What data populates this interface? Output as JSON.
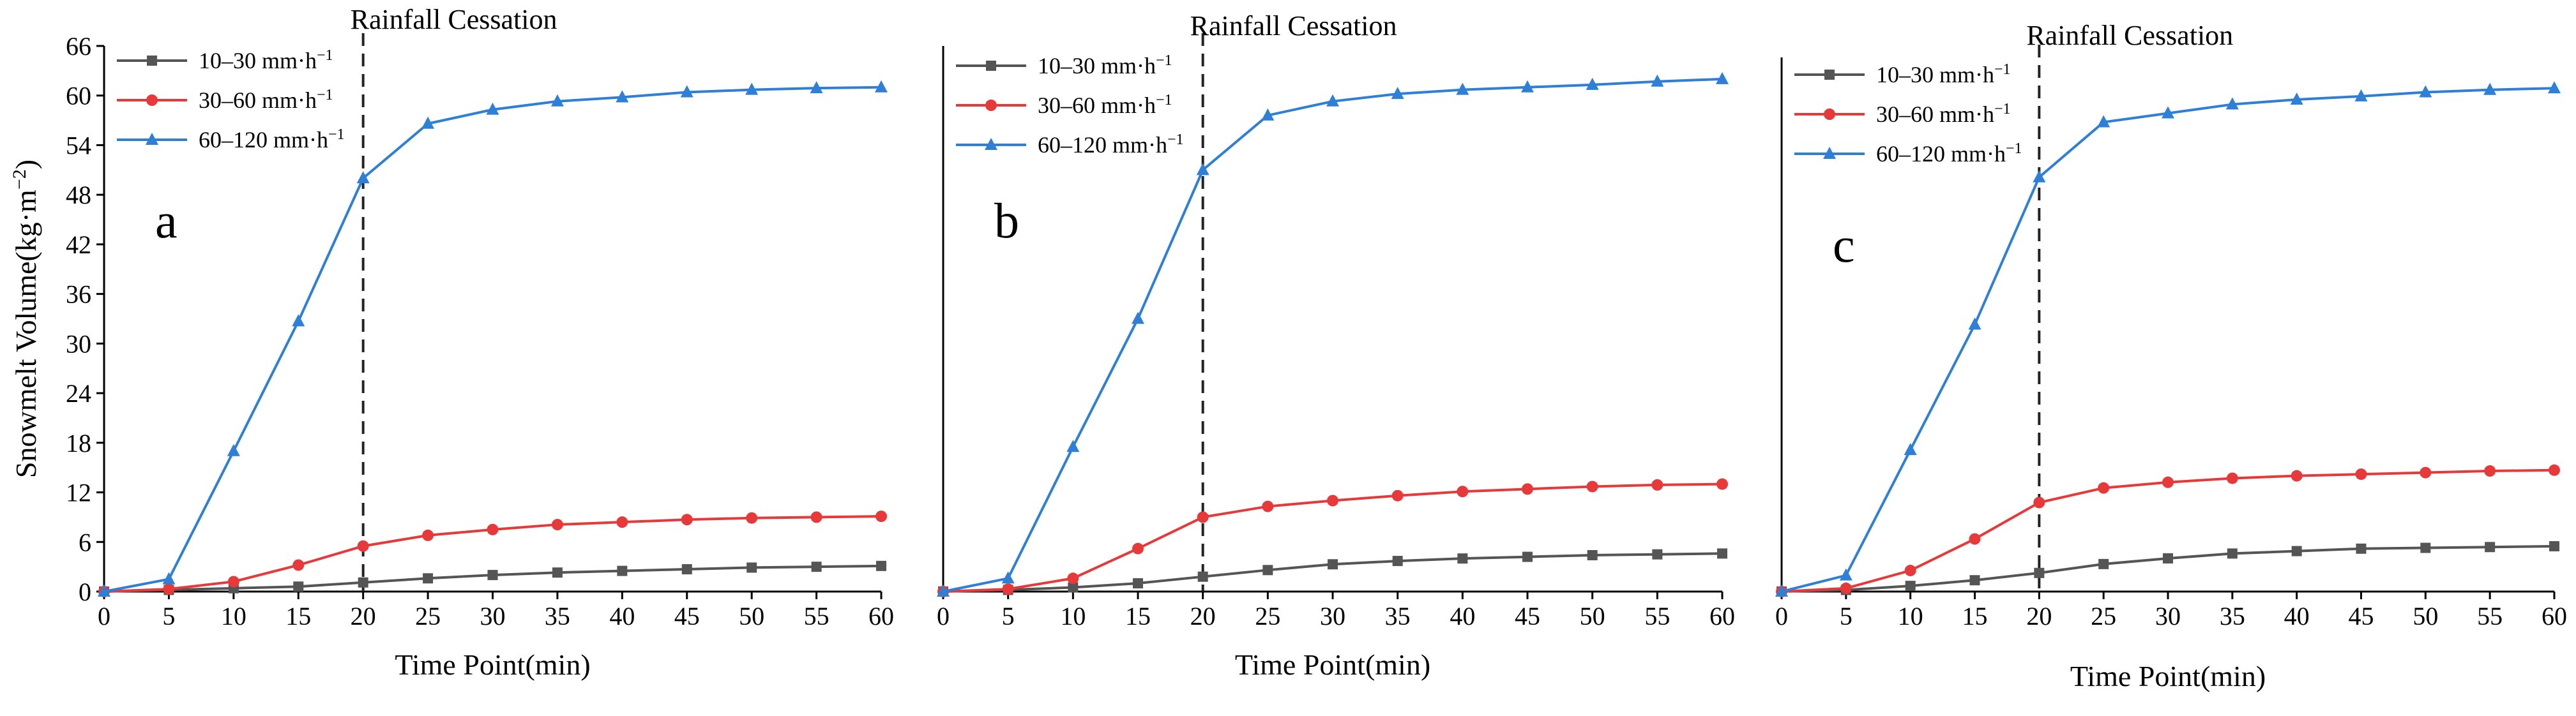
{
  "chart_data": [
    {
      "type": "line",
      "panel_label": "a",
      "annotation": "Rainfall Cessation",
      "cessation_x": 20,
      "xlabel": "Time Point(min)",
      "ylabel": "Snowmelt Volume(kg·m⁻²)",
      "show_y_ticks": true,
      "xlim": [
        0,
        60
      ],
      "ylim": [
        0,
        66
      ],
      "x_ticks": [
        0,
        5,
        10,
        15,
        20,
        25,
        30,
        35,
        40,
        45,
        50,
        55,
        60
      ],
      "y_ticks": [
        0,
        6,
        12,
        18,
        24,
        30,
        36,
        42,
        48,
        54,
        60,
        66
      ],
      "x": [
        0,
        5,
        10,
        15,
        20,
        25,
        30,
        35,
        40,
        45,
        50,
        55,
        60
      ],
      "series": [
        {
          "name": "10–30 mm·h⁻¹",
          "color": "#555555",
          "marker": "square",
          "values": [
            0,
            0.2,
            0.4,
            0.6,
            1.1,
            1.6,
            2.0,
            2.3,
            2.5,
            2.7,
            2.9,
            3.0,
            3.1
          ]
        },
        {
          "name": "30–60 mm·h⁻¹",
          "color": "#e8393a",
          "marker": "circle",
          "values": [
            0,
            0.3,
            1.2,
            3.2,
            5.5,
            6.8,
            7.5,
            8.1,
            8.4,
            8.7,
            8.9,
            9.0,
            9.1
          ]
        },
        {
          "name": "60–120 mm·h⁻¹",
          "color": "#2e7fd8",
          "marker": "triangle",
          "values": [
            0,
            1.5,
            17.0,
            32.7,
            50.0,
            56.6,
            58.3,
            59.3,
            59.8,
            60.4,
            60.7,
            60.9,
            61.0
          ]
        }
      ]
    },
    {
      "type": "line",
      "panel_label": "b",
      "annotation": "Rainfall Cessation",
      "cessation_x": 20,
      "xlabel": "Time Point(min)",
      "ylabel": "",
      "show_y_ticks": false,
      "xlim": [
        0,
        60
      ],
      "ylim": [
        0,
        66
      ],
      "x_ticks": [
        0,
        5,
        10,
        15,
        20,
        25,
        30,
        35,
        40,
        45,
        50,
        55,
        60
      ],
      "x": [
        0,
        5,
        10,
        15,
        20,
        25,
        30,
        35,
        40,
        45,
        50,
        55,
        60
      ],
      "series": [
        {
          "name": "10–30 mm·h⁻¹",
          "color": "#555555",
          "marker": "square",
          "values": [
            0,
            0.2,
            0.5,
            1.0,
            1.8,
            2.6,
            3.3,
            3.7,
            4.0,
            4.2,
            4.4,
            4.5,
            4.6
          ]
        },
        {
          "name": "30–60 mm·h⁻¹",
          "color": "#e8393a",
          "marker": "circle",
          "values": [
            0,
            0.3,
            1.6,
            5.2,
            9.0,
            10.3,
            11.0,
            11.6,
            12.1,
            12.4,
            12.7,
            12.9,
            13.0
          ]
        },
        {
          "name": "60–120 mm·h⁻¹",
          "color": "#2e7fd8",
          "marker": "triangle",
          "values": [
            0,
            1.6,
            17.5,
            33.0,
            51.0,
            57.6,
            59.3,
            60.2,
            60.7,
            61.0,
            61.3,
            61.7,
            62.0
          ]
        }
      ]
    },
    {
      "type": "line",
      "panel_label": "c",
      "annotation": "Rainfall Cessation",
      "cessation_x": 20,
      "xlabel": "Time Point(min)",
      "ylabel": "",
      "show_y_ticks": false,
      "xlim": [
        0,
        60
      ],
      "ylim": [
        0,
        66
      ],
      "x_ticks": [
        0,
        5,
        10,
        15,
        20,
        25,
        30,
        35,
        40,
        45,
        50,
        55,
        60
      ],
      "x": [
        0,
        5,
        10,
        15,
        20,
        25,
        30,
        35,
        40,
        45,
        50,
        55,
        60
      ],
      "series": [
        {
          "name": "10–30 mm·h⁻¹",
          "color": "#555555",
          "marker": "square",
          "values": [
            0,
            0.2,
            0.7,
            1.4,
            2.3,
            3.4,
            4.1,
            4.7,
            5.0,
            5.3,
            5.4,
            5.5,
            5.6
          ]
        },
        {
          "name": "30–60 mm·h⁻¹",
          "color": "#e8393a",
          "marker": "circle",
          "values": [
            0,
            0.4,
            2.6,
            6.5,
            11.0,
            12.8,
            13.5,
            14.0,
            14.3,
            14.5,
            14.7,
            14.9,
            15.0
          ]
        },
        {
          "name": "60–120 mm·h⁻¹",
          "color": "#2e7fd8",
          "marker": "triangle",
          "values": [
            0,
            2.0,
            17.5,
            33.0,
            51.2,
            58.0,
            59.1,
            60.2,
            60.8,
            61.2,
            61.7,
            62.0,
            62.2
          ]
        }
      ]
    }
  ]
}
